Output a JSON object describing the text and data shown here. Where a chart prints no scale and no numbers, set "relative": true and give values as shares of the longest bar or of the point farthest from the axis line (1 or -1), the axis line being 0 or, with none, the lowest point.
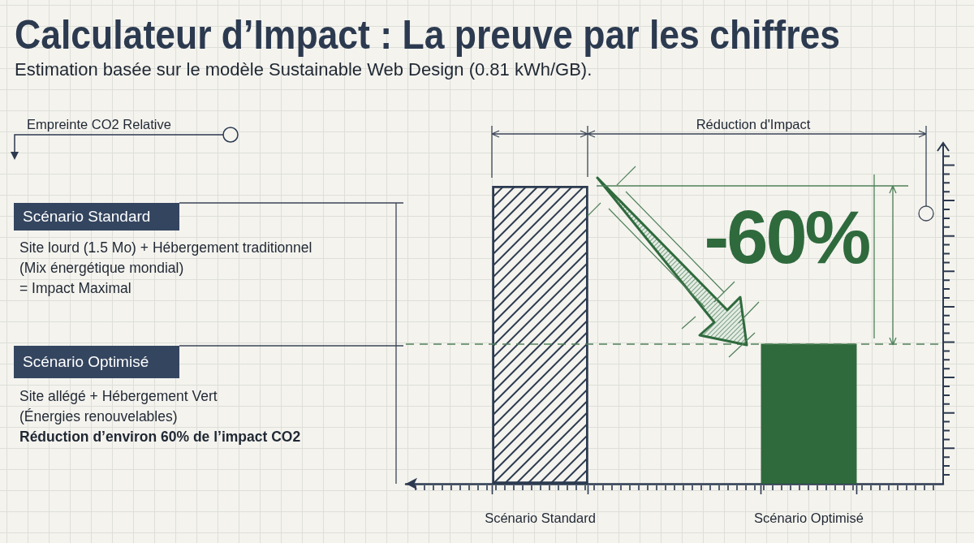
{
  "chart_data": {
    "type": "bar",
    "title": "Calculateur d’Impact : La preuve par les chiffres",
    "subtitle": "Estimation basée sur le modèle Sustainable Web Design (0.81 kWh/GB).",
    "categories": [
      "Scénario Standard",
      "Scénario Optimisé"
    ],
    "values": [
      1,
      0.47
    ],
    "colors": [
      "#2c3a50",
      "#2f6a3d"
    ],
    "relative": true,
    "ref_lines": [
      {
        "axis": "y",
        "value": 0.47,
        "color": "#4f8159",
        "line_style": "dashed"
      }
    ],
    "annotations": [
      "Empreinte CO2 Relative",
      "Réduction d'Impact",
      "-60%",
      "Scénario Standard",
      "Site lourd (1.5 Mo) + Hébergement traditionnel\n(Mix énergétique mondial)\n= Impact Maximal",
      "Scénario Optimisé",
      "Site allégé + Hébergement Vert\n(Énergies renouvelables)\nRéduction d’environ 60% de l’impact CO2"
    ]
  }
}
